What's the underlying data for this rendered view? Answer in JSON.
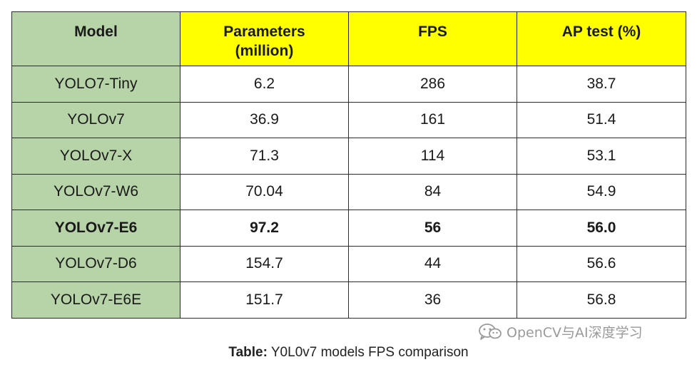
{
  "table": {
    "headers": [
      {
        "line1": "Model",
        "line2": ""
      },
      {
        "line1": "Parameters",
        "line2": "(million)"
      },
      {
        "line1": "FPS",
        "line2": ""
      },
      {
        "line1": "AP test (%)",
        "line2": ""
      }
    ],
    "rows": [
      {
        "model": "YOLO7-Tiny",
        "params": "6.2",
        "fps": "286",
        "ap": "38.7",
        "bold": false
      },
      {
        "model": "YOLOv7",
        "params": "36.9",
        "fps": "161",
        "ap": "51.4",
        "bold": false
      },
      {
        "model": "YOLOv7-X",
        "params": "71.3",
        "fps": "114",
        "ap": "53.1",
        "bold": false
      },
      {
        "model": "YOLOv7-W6",
        "params": "70.04",
        "fps": "84",
        "ap": "54.9",
        "bold": false
      },
      {
        "model": "YOLOv7-E6",
        "params": "97.2",
        "fps": "56",
        "ap": "56.0",
        "bold": true
      },
      {
        "model": "YOLOv7-D6",
        "params": "154.7",
        "fps": "44",
        "ap": "56.6",
        "bold": false
      },
      {
        "model": "YOLOv7-E6E",
        "params": "151.7",
        "fps": "36",
        "ap": "56.8",
        "bold": false
      }
    ]
  },
  "watermark": {
    "icon": "wechat-icon",
    "text": "OpenCV与AI深度学习"
  },
  "caption": {
    "label": "Table:",
    "text": " Y0L0v7 models FPS comparison"
  },
  "colors": {
    "model_column": "#b7d3a8",
    "header_highlight": "#ffff00",
    "border": "#2b2b2b"
  }
}
